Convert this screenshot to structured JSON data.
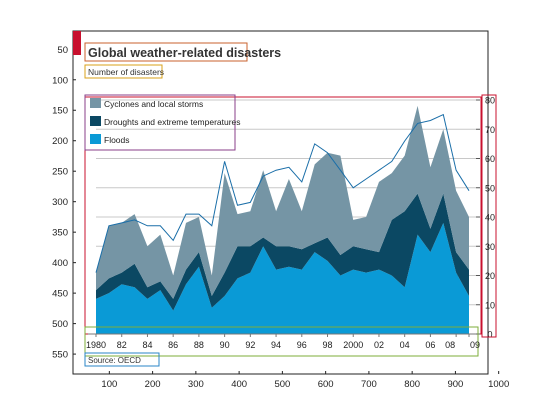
{
  "figure": {
    "x_ticks": [
      "100",
      "200",
      "300",
      "400",
      "500",
      "600",
      "700",
      "800",
      "900",
      "1000"
    ],
    "y_ticks": [
      "50",
      "100",
      "150",
      "200",
      "250",
      "300",
      "350",
      "400",
      "450",
      "500",
      "550"
    ]
  },
  "infographic": {
    "title": "Global weather-related disasters",
    "subtitle": "Number of disasters",
    "source": "Source: OECD",
    "legend": [
      "Cyclones and local storms",
      "Droughts and extreme temperatures",
      "Floods"
    ]
  },
  "chart_data": {
    "type": "area",
    "stacked": true,
    "title": "Global weather-related disasters",
    "ylabel": "Number of disasters",
    "x_tick_labels": [
      "1980",
      "82",
      "84",
      "86",
      "88",
      "90",
      "92",
      "94",
      "96",
      "98",
      "2000",
      "02",
      "04",
      "06",
      "08",
      "09"
    ],
    "right_axis": {
      "ylim": [
        0,
        80
      ],
      "ticks": [
        0,
        10,
        20,
        30,
        40,
        50,
        60,
        70,
        80
      ]
    },
    "grid": "horizontal",
    "colors": {
      "floods": "#0a9ad6",
      "droughts": "#0b4863",
      "cyclones": "#7595a5",
      "total_line": "#1a6ea8",
      "accent_red": "#c8102e"
    },
    "x": [
      1980,
      1981,
      1982,
      1983,
      1984,
      1985,
      1986,
      1987,
      1988,
      1989,
      1990,
      1991,
      1992,
      1993,
      1994,
      1995,
      1996,
      1997,
      1998,
      1999,
      2000,
      2001,
      2002,
      2003,
      2004,
      2005,
      2006,
      2007,
      2008,
      2009
    ],
    "series": [
      {
        "name": "Floods",
        "values": [
          12,
          14,
          17,
          16,
          12,
          15,
          8,
          17,
          23,
          9,
          13,
          19,
          21,
          30,
          22,
          23,
          22,
          28,
          25,
          20,
          22,
          21,
          22,
          20,
          16,
          34,
          28,
          38,
          21,
          13
        ]
      },
      {
        "name": "Droughts and extreme temperatures",
        "values": [
          3,
          5,
          4,
          8,
          4,
          3,
          4,
          5,
          5,
          4,
          8,
          11,
          9,
          3,
          8,
          7,
          7,
          3,
          8,
          7,
          8,
          8,
          6,
          19,
          26,
          14,
          8,
          10,
          7,
          9
        ]
      },
      {
        "name": "Cyclones and local storms",
        "values": [
          6,
          18,
          17,
          17,
          14,
          16,
          8,
          16,
          12,
          7,
          34,
          11,
          12,
          23,
          12,
          23,
          13,
          27,
          29,
          34,
          9,
          11,
          24,
          16,
          19,
          30,
          21,
          22,
          21,
          18
        ]
      }
    ],
    "total": [
      21,
      37,
      38,
      39,
      37,
      37,
      32,
      41,
      41,
      37,
      59,
      44,
      45,
      54,
      56,
      57,
      52,
      65,
      62,
      56,
      50,
      53,
      56,
      59,
      66,
      72,
      73,
      75,
      56,
      49
    ]
  }
}
